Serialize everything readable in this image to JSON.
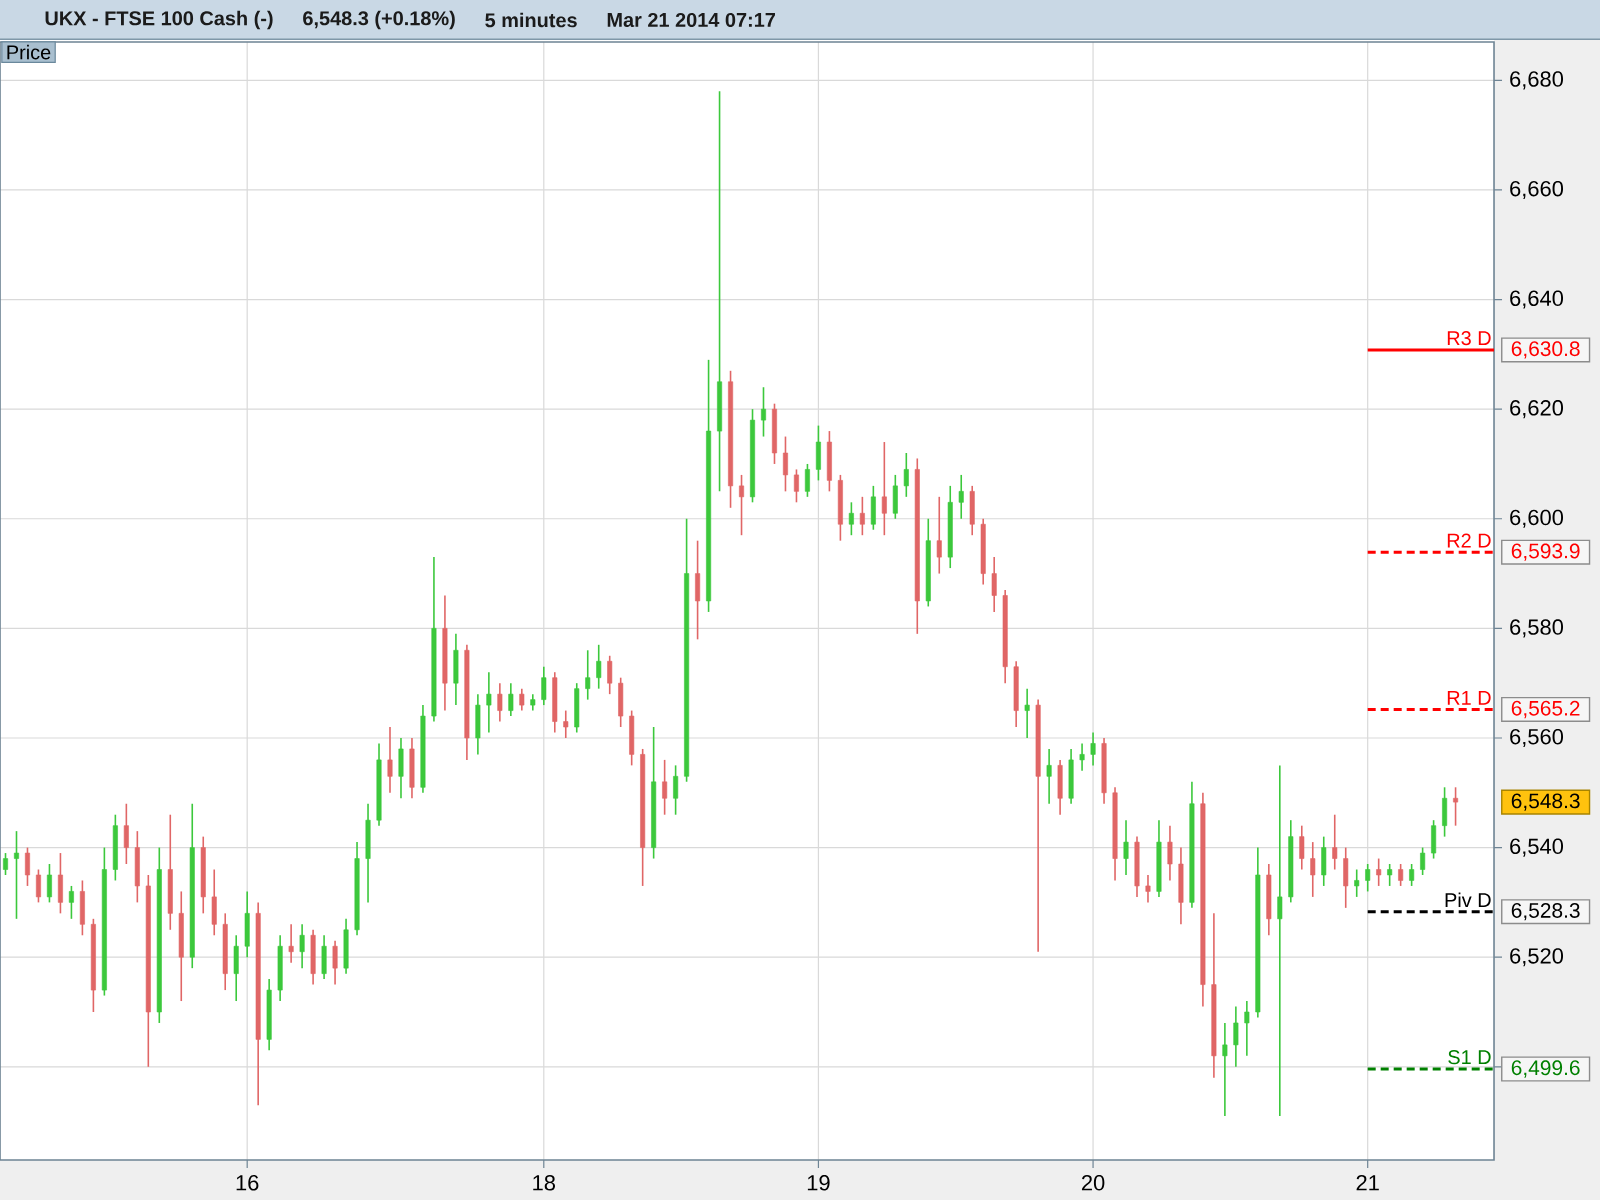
{
  "chart_data": {
    "type": "candlestick",
    "title": "UKX - FTSE 100 Cash (-)",
    "subtitle": "6,548.3 (+0.18%)",
    "ylabel": "Price",
    "annotations": [
      "5 minutes",
      "Mar 21 2014 07:17"
    ],
    "categories": [
      null,
      null,
      null,
      null,
      null,
      null,
      null,
      null,
      null,
      null,
      null,
      null,
      null,
      null,
      null,
      null,
      null,
      null,
      null,
      null,
      null,
      null,
      "16",
      null,
      null,
      null,
      null,
      null,
      null,
      null,
      null,
      null,
      null,
      null,
      null,
      null,
      null,
      null,
      null,
      null,
      null,
      null,
      null,
      null,
      null,
      null,
      null,
      null,
      null,
      "18",
      null,
      null,
      null,
      null,
      null,
      null,
      null,
      null,
      null,
      null,
      null,
      null,
      null,
      null,
      null,
      null,
      null,
      null,
      null,
      null,
      null,
      null,
      null,
      null,
      "19",
      null,
      null,
      null,
      null,
      null,
      null,
      null,
      null,
      null,
      null,
      null,
      null,
      null,
      null,
      null,
      null,
      null,
      null,
      null,
      null,
      null,
      null,
      null,
      null,
      "20",
      null,
      null,
      null,
      null,
      null,
      null,
      null,
      null,
      null,
      null,
      null,
      null,
      null,
      null,
      null,
      null,
      null,
      null,
      null,
      null,
      null,
      null,
      null,
      null,
      "21",
      null,
      null,
      null,
      null,
      null,
      null,
      null,
      null
    ],
    "ohlc": [
      [
        6536,
        6539,
        6535,
        6538
      ],
      [
        6538,
        6543,
        6527,
        6539
      ],
      [
        6539,
        6540,
        6533,
        6535
      ],
      [
        6535,
        6536,
        6530,
        6531
      ],
      [
        6531,
        6537,
        6530,
        6535
      ],
      [
        6535,
        6539,
        6528,
        6530
      ],
      [
        6530,
        6533,
        6527,
        6532
      ],
      [
        6532,
        6534,
        6524,
        6526
      ],
      [
        6526,
        6527,
        6510,
        6514
      ],
      [
        6514,
        6540,
        6513,
        6536
      ],
      [
        6536,
        6546,
        6534,
        6544
      ],
      [
        6544,
        6548,
        6537,
        6540
      ],
      [
        6540,
        6543,
        6530,
        6533
      ],
      [
        6533,
        6535,
        6500,
        6510
      ],
      [
        6510,
        6540,
        6508,
        6536
      ],
      [
        6536,
        6546,
        6525,
        6528
      ],
      [
        6528,
        6532,
        6512,
        6520
      ],
      [
        6520,
        6548,
        6518,
        6540
      ],
      [
        6540,
        6542,
        6528,
        6531
      ],
      [
        6531,
        6536,
        6524,
        6526
      ],
      [
        6526,
        6528,
        6514,
        6517
      ],
      [
        6517,
        6524,
        6512,
        6522
      ],
      [
        6522,
        6532,
        6520,
        6528
      ],
      [
        6528,
        6530,
        6493,
        6505
      ],
      [
        6505,
        6516,
        6503,
        6514
      ],
      [
        6514,
        6524,
        6512,
        6522
      ],
      [
        6522,
        6526,
        6519,
        6521
      ],
      [
        6521,
        6526,
        6518,
        6524
      ],
      [
        6524,
        6525,
        6515,
        6517
      ],
      [
        6517,
        6524,
        6516,
        6522
      ],
      [
        6522,
        6523,
        6515,
        6518
      ],
      [
        6518,
        6527,
        6517,
        6525
      ],
      [
        6525,
        6541,
        6524,
        6538
      ],
      [
        6538,
        6548,
        6530,
        6545
      ],
      [
        6545,
        6559,
        6544,
        6556
      ],
      [
        6556,
        6562,
        6550,
        6553
      ],
      [
        6553,
        6560,
        6549,
        6558
      ],
      [
        6558,
        6560,
        6549,
        6551
      ],
      [
        6551,
        6566,
        6550,
        6564
      ],
      [
        6564,
        6593,
        6563,
        6580
      ],
      [
        6580,
        6586,
        6565,
        6570
      ],
      [
        6570,
        6579,
        6566,
        6576
      ],
      [
        6576,
        6577,
        6556,
        6560
      ],
      [
        6560,
        6568,
        6557,
        6566
      ],
      [
        6566,
        6572,
        6561,
        6568
      ],
      [
        6568,
        6570,
        6563,
        6565
      ],
      [
        6565,
        6570,
        6564,
        6568
      ],
      [
        6568,
        6569,
        6565,
        6566
      ],
      [
        6566,
        6568,
        6565,
        6567
      ],
      [
        6567,
        6573,
        6566,
        6571
      ],
      [
        6571,
        6572,
        6561,
        6563
      ],
      [
        6563,
        6565,
        6560,
        6562
      ],
      [
        6562,
        6570,
        6561,
        6569
      ],
      [
        6569,
        6576,
        6567,
        6571
      ],
      [
        6571,
        6577,
        6569,
        6574
      ],
      [
        6574,
        6575,
        6568,
        6570
      ],
      [
        6570,
        6571,
        6562,
        6564
      ],
      [
        6564,
        6565,
        6555,
        6557
      ],
      [
        6557,
        6558,
        6533,
        6540
      ],
      [
        6540,
        6562,
        6538,
        6552
      ],
      [
        6552,
        6556,
        6546,
        6549
      ],
      [
        6549,
        6555,
        6546,
        6553
      ],
      [
        6553,
        6600,
        6552,
        6590
      ],
      [
        6590,
        6596,
        6578,
        6585
      ],
      [
        6585,
        6629,
        6583,
        6616
      ],
      [
        6616,
        6678,
        6605,
        6625
      ],
      [
        6625,
        6627,
        6602,
        6606
      ],
      [
        6606,
        6608,
        6597,
        6604
      ],
      [
        6604,
        6620,
        6603,
        6618
      ],
      [
        6618,
        6624,
        6615,
        6620
      ],
      [
        6620,
        6621,
        6610,
        6612
      ],
      [
        6612,
        6615,
        6605,
        6608
      ],
      [
        6608,
        6609,
        6603,
        6605
      ],
      [
        6605,
        6610,
        6604,
        6609
      ],
      [
        6609,
        6617,
        6607,
        6614
      ],
      [
        6614,
        6616,
        6605,
        6607
      ],
      [
        6607,
        6608,
        6596,
        6599
      ],
      [
        6599,
        6603,
        6597,
        6601
      ],
      [
        6601,
        6604,
        6597,
        6599
      ],
      [
        6599,
        6606,
        6598,
        6604
      ],
      [
        6604,
        6614,
        6597,
        6601
      ],
      [
        6601,
        6608,
        6600,
        6606
      ],
      [
        6606,
        6612,
        6604,
        6609
      ],
      [
        6609,
        6611,
        6579,
        6585
      ],
      [
        6585,
        6600,
        6584,
        6596
      ],
      [
        6596,
        6604,
        6590,
        6593
      ],
      [
        6593,
        6606,
        6591,
        6603
      ],
      [
        6603,
        6608,
        6600,
        6605
      ],
      [
        6605,
        6606,
        6597,
        6599
      ],
      [
        6599,
        6600,
        6588,
        6590
      ],
      [
        6590,
        6593,
        6583,
        6586
      ],
      [
        6586,
        6587,
        6570,
        6573
      ],
      [
        6573,
        6574,
        6562,
        6565
      ],
      [
        6565,
        6569,
        6560,
        6566
      ],
      [
        6566,
        6567,
        6521,
        6553
      ],
      [
        6553,
        6558,
        6548,
        6555
      ],
      [
        6555,
        6556,
        6546,
        6549
      ],
      [
        6549,
        6558,
        6548,
        6556
      ],
      [
        6556,
        6559,
        6554,
        6557
      ],
      [
        6557,
        6561,
        6555,
        6559
      ],
      [
        6559,
        6560,
        6548,
        6550
      ],
      [
        6550,
        6551,
        6534,
        6538
      ],
      [
        6538,
        6545,
        6535,
        6541
      ],
      [
        6541,
        6542,
        6531,
        6533
      ],
      [
        6533,
        6535,
        6530,
        6532
      ],
      [
        6532,
        6545,
        6531,
        6541
      ],
      [
        6541,
        6544,
        6534,
        6537
      ],
      [
        6537,
        6540,
        6526,
        6530
      ],
      [
        6530,
        6552,
        6529,
        6548
      ],
      [
        6548,
        6550,
        6511,
        6515
      ],
      [
        6515,
        6528,
        6498,
        6502
      ],
      [
        6502,
        6508,
        6491,
        6504
      ],
      [
        6504,
        6511,
        6500,
        6508
      ],
      [
        6508,
        6512,
        6502,
        6510
      ],
      [
        6510,
        6540,
        6509,
        6535
      ],
      [
        6535,
        6537,
        6524,
        6527
      ],
      [
        6527,
        6555,
        6491,
        6531
      ],
      [
        6531,
        6545,
        6530,
        6542
      ],
      [
        6542,
        6544,
        6536,
        6538
      ],
      [
        6538,
        6541,
        6531,
        6535
      ],
      [
        6535,
        6542,
        6533,
        6540
      ],
      [
        6540,
        6546,
        6536,
        6538
      ],
      [
        6538,
        6540,
        6529,
        6533
      ],
      [
        6533,
        6536,
        6531,
        6534
      ],
      [
        6534,
        6537,
        6532,
        6536
      ],
      [
        6536,
        6538,
        6533,
        6535
      ],
      [
        6535,
        6537,
        6533,
        6536
      ],
      [
        6536,
        6537,
        6533,
        6534
      ],
      [
        6534,
        6537,
        6533,
        6536
      ],
      [
        6536,
        6540,
        6535,
        6539
      ],
      [
        6539,
        6545,
        6538,
        6544
      ],
      [
        6544,
        6551,
        6542,
        6549
      ],
      [
        6549,
        6551,
        6544,
        6548.3
      ]
    ],
    "colors": [
      "#3cc83c",
      "#3cc83c",
      "#e06666",
      "#e06666",
      "#3cc83c",
      "#e06666",
      "#3cc83c",
      "#e06666",
      "#e06666",
      "#3cc83c",
      "#3cc83c",
      "#e06666",
      "#e06666",
      "#e06666",
      "#3cc83c",
      "#e06666",
      "#e06666",
      "#3cc83c",
      "#e06666",
      "#e06666",
      "#e06666",
      "#3cc83c",
      "#3cc83c",
      "#e06666",
      "#3cc83c",
      "#3cc83c",
      "#e06666",
      "#3cc83c",
      "#e06666",
      "#3cc83c",
      "#e06666",
      "#3cc83c",
      "#3cc83c",
      "#3cc83c",
      "#3cc83c",
      "#e06666",
      "#3cc83c",
      "#e06666",
      "#3cc83c",
      "#3cc83c",
      "#e06666",
      "#3cc83c",
      "#e06666",
      "#3cc83c",
      "#3cc83c",
      "#e06666",
      "#3cc83c",
      "#e06666",
      "#3cc83c",
      "#3cc83c",
      "#e06666",
      "#e06666",
      "#3cc83c",
      "#3cc83c",
      "#3cc83c",
      "#e06666",
      "#e06666",
      "#e06666",
      "#e06666",
      "#3cc83c",
      "#e06666",
      "#3cc83c",
      "#3cc83c",
      "#e06666",
      "#3cc83c",
      "#3cc83c",
      "#e06666",
      "#e06666",
      "#3cc83c",
      "#3cc83c",
      "#e06666",
      "#e06666",
      "#e06666",
      "#3cc83c",
      "#3cc83c",
      "#e06666",
      "#e06666",
      "#3cc83c",
      "#e06666",
      "#3cc83c",
      "#e06666",
      "#3cc83c",
      "#3cc83c",
      "#e06666",
      "#3cc83c",
      "#e06666",
      "#3cc83c",
      "#3cc83c",
      "#e06666",
      "#e06666",
      "#e06666",
      "#e06666",
      "#e06666",
      "#3cc83c",
      "#e06666",
      "#3cc83c",
      "#e06666",
      "#3cc83c",
      "#3cc83c",
      "#3cc83c",
      "#e06666",
      "#e06666",
      "#3cc83c",
      "#e06666",
      "#e06666",
      "#3cc83c",
      "#e06666",
      "#e06666",
      "#3cc83c",
      "#e06666",
      "#e06666",
      "#3cc83c",
      "#3cc83c",
      "#3cc83c",
      "#3cc83c",
      "#e06666",
      "#3cc83c",
      "#3cc83c",
      "#e06666",
      "#e06666",
      "#3cc83c",
      "#e06666",
      "#e06666",
      "#3cc83c",
      "#3cc83c",
      "#e06666",
      "#3cc83c",
      "#e06666",
      "#3cc83c",
      "#3cc83c",
      "#3cc83c",
      "#3cc83c",
      "#e06666"
    ],
    "ylim": [
      6483,
      6687
    ],
    "yticks": [
      {
        "value": 6500,
        "label": null
      },
      {
        "value": 6520,
        "label": "6,520"
      },
      {
        "value": 6540,
        "label": "6,540"
      },
      {
        "value": 6560,
        "label": "6,560"
      },
      {
        "value": 6580,
        "label": "6,580"
      },
      {
        "value": 6600,
        "label": "6,600"
      },
      {
        "value": 6620,
        "label": "6,620"
      },
      {
        "value": 6640,
        "label": "6,640"
      },
      {
        "value": 6660,
        "label": "6,660"
      },
      {
        "value": 6680,
        "label": "6,680"
      }
    ],
    "y2lim": [
      6483,
      6687
    ],
    "y2ticks": [
      {
        "value": 6630.8,
        "label": "6,630.8"
      },
      {
        "value": 6593.9,
        "label": "6,593.9"
      },
      {
        "value": 6565.2,
        "label": "6,565.2"
      },
      {
        "value": 6548.3,
        "label": "6,548.3"
      },
      {
        "value": 6528.3,
        "label": "6,528.3"
      },
      {
        "value": 6499.6,
        "label": "6,499.6"
      }
    ],
    "grid": true,
    "ref_lines": [
      {
        "axis": "y",
        "value": 6630.8,
        "label": "R3 D",
        "color": "#ff0000",
        "line_style": "solid"
      },
      {
        "axis": "y",
        "value": 6593.9,
        "label": "R2 D",
        "color": "#ff0000",
        "line_style": "dashed"
      },
      {
        "axis": "y",
        "value": 6565.2,
        "label": "R1 D",
        "color": "#ff0000",
        "line_style": "dashed"
      },
      {
        "axis": "y",
        "value": 6528.3,
        "label": "Piv D",
        "color": "#000000",
        "line_style": "dashed"
      },
      {
        "axis": "y",
        "value": 6499.6,
        "label": "S1 D",
        "color": "#008000",
        "line_style": "dashed"
      }
    ]
  }
}
